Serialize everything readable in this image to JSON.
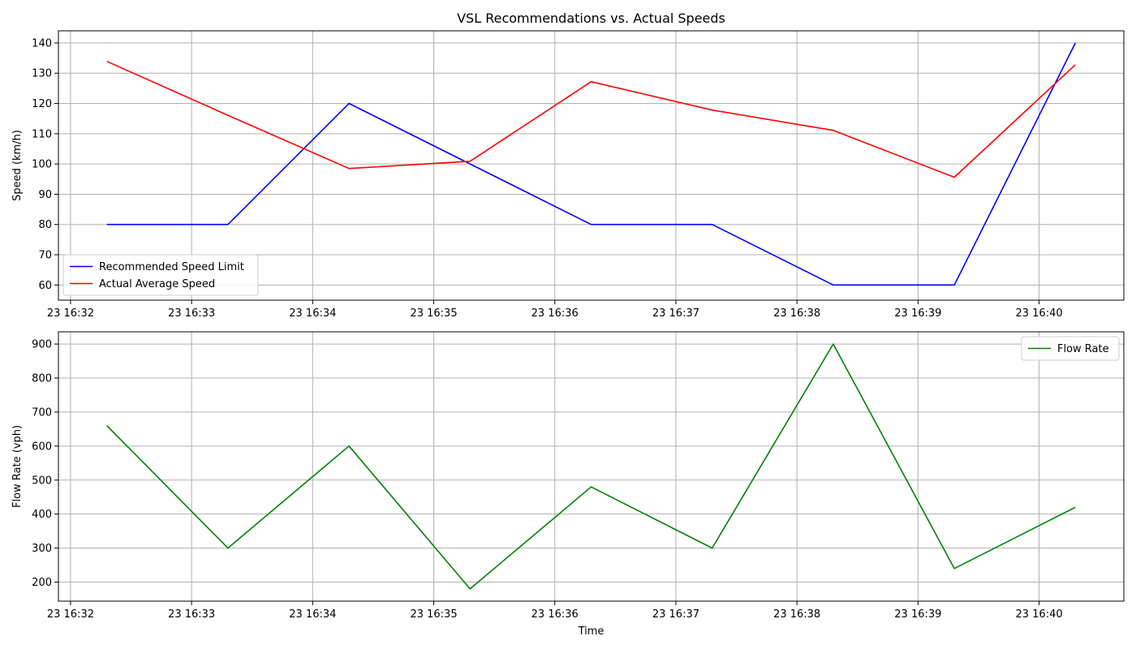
{
  "chart_data": [
    {
      "type": "line",
      "title": "VSL Recommendations vs. Actual Speeds",
      "xlabel": "",
      "ylabel": "Speed (km/h)",
      "x": [
        "16:32:18",
        "16:33:18",
        "16:34:18",
        "16:35:18",
        "16:36:18",
        "16:37:18",
        "16:38:18",
        "16:39:18",
        "16:40:18"
      ],
      "x_ticks": [
        "23 16:32",
        "23 16:33",
        "23 16:34",
        "23 16:35",
        "23 16:36",
        "23 16:37",
        "23 16:38",
        "23 16:39",
        "23 16:40"
      ],
      "y_ticks": [
        60,
        70,
        80,
        90,
        100,
        110,
        120,
        130,
        140
      ],
      "ylim": [
        55,
        144
      ],
      "grid": true,
      "legend_position": "lower-left",
      "series": [
        {
          "name": "Recommended Speed Limit",
          "color": "#0000ff",
          "values": [
            80,
            80,
            120,
            100,
            80,
            80,
            60,
            60,
            140
          ]
        },
        {
          "name": "Actual Average Speed",
          "color": "#ff0000",
          "values": [
            133.9,
            116.1,
            98.5,
            100.9,
            127.2,
            117.8,
            111.1,
            95.6,
            132.8
          ]
        }
      ]
    },
    {
      "type": "line",
      "title": "",
      "xlabel": "Time",
      "ylabel": "Flow Rate (vph)",
      "x": [
        "16:32:18",
        "16:33:18",
        "16:34:18",
        "16:35:18",
        "16:36:18",
        "16:37:18",
        "16:38:18",
        "16:39:18",
        "16:40:18"
      ],
      "x_ticks": [
        "23 16:32",
        "23 16:33",
        "23 16:34",
        "23 16:35",
        "23 16:36",
        "23 16:37",
        "23 16:38",
        "23 16:39",
        "23 16:40"
      ],
      "y_ticks": [
        200,
        300,
        400,
        500,
        600,
        700,
        800,
        900
      ],
      "ylim": [
        144,
        936
      ],
      "grid": true,
      "legend_position": "upper-right",
      "series": [
        {
          "name": "Flow Rate",
          "color": "#008000",
          "values": [
            660,
            300,
            600,
            180,
            480,
            300,
            900,
            240,
            420
          ]
        }
      ]
    }
  ]
}
